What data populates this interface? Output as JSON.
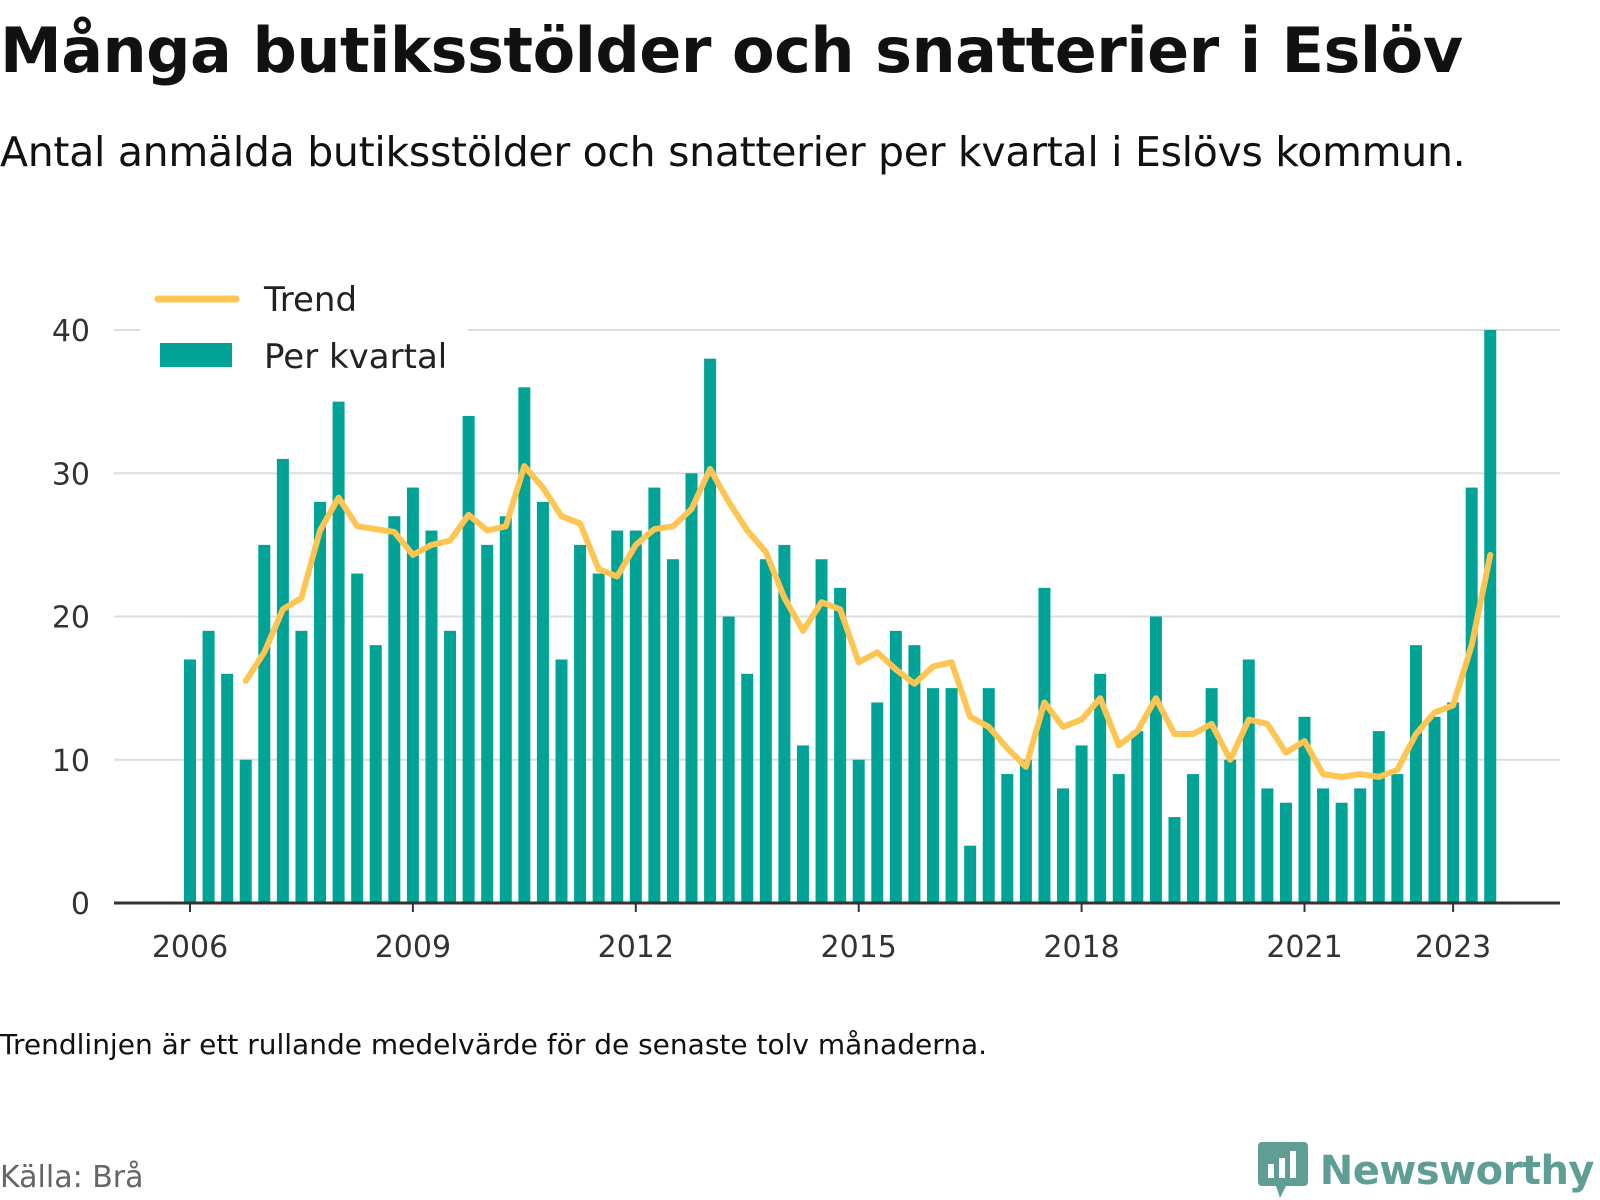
{
  "title": "Många butiksstölder och snatterier i Eslöv",
  "subtitle": "Antal anmälda butiksstölder och snatterier per kvartal i Eslövs kommun.",
  "note": "Trendlinjen är ett rullande medelvärde för de senaste tolv månaderna.",
  "source": "Källa: Brå",
  "brand": "Newsworthy",
  "colors": {
    "bars": "#00a396",
    "trend": "#ffc552",
    "grid": "#dddddd",
    "axis": "#333333",
    "brand": "#5f9e95"
  },
  "chart_data": {
    "type": "bar",
    "x_start": "2006 Q1",
    "frequency": "quarterly",
    "ylim": [
      0,
      40
    ],
    "yticks": [
      0,
      10,
      20,
      30,
      40
    ],
    "xticks": [
      "2006",
      "2009",
      "2012",
      "2015",
      "2018",
      "2021",
      "2023"
    ],
    "legend": {
      "position": "top-left",
      "entries": [
        "Trend",
        "Per kvartal"
      ]
    },
    "grid": true,
    "series": [
      {
        "name": "Per kvartal",
        "type": "bar",
        "values": [
          17,
          19,
          16,
          10,
          25,
          31,
          19,
          28,
          35,
          23,
          18,
          27,
          29,
          26,
          19,
          34,
          25,
          27,
          36,
          28,
          17,
          25,
          23,
          26,
          26,
          29,
          24,
          30,
          38,
          20,
          16,
          24,
          25,
          11,
          24,
          22,
          10,
          14,
          19,
          18,
          15,
          15,
          4,
          15,
          9,
          10,
          22,
          8,
          11,
          16,
          9,
          12,
          20,
          6,
          9,
          15,
          10,
          17,
          8,
          7,
          13,
          8,
          7,
          8,
          12,
          9,
          18,
          13,
          14,
          29,
          40
        ]
      },
      {
        "name": "Trend",
        "type": "line",
        "values": [
          null,
          null,
          null,
          15.5,
          17.5,
          20.5,
          21.3,
          26,
          28.3,
          26.3,
          26.1,
          25.9,
          24.3,
          25,
          25.3,
          27.1,
          26,
          26.3,
          30.5,
          29,
          27,
          26.5,
          23.3,
          22.8,
          25,
          26.1,
          26.3,
          27.5,
          30.3,
          28,
          26,
          24.5,
          21.3,
          19,
          21,
          20.5,
          16.8,
          17.5,
          16.3,
          15.3,
          16.5,
          16.8,
          13,
          12.3,
          10.8,
          9.5,
          14,
          12.3,
          12.8,
          14.3,
          11,
          12,
          14.3,
          11.8,
          11.8,
          12.5,
          10,
          12.8,
          12.5,
          10.5,
          11.3,
          9,
          8.8,
          9,
          8.8,
          9.3,
          11.8,
          13.3,
          13.8,
          18,
          24.3
        ]
      }
    ]
  }
}
